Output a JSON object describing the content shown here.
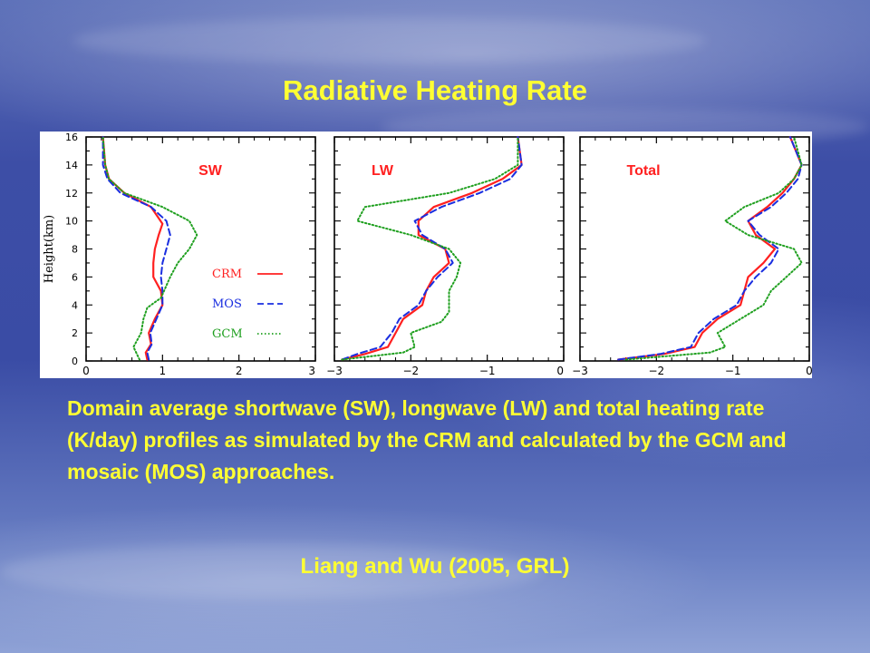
{
  "slide": {
    "title": "Radiative Heating Rate",
    "description": "Domain average shortwave (SW), longwave (LW) and total heating rate (K/day) profiles as simulated by the CRM and calculated by the GCM and mosaic (MOS) approaches.",
    "citation": "Liang and Wu (2005, GRL)",
    "text_color": "#ffff33"
  },
  "chart_data": [
    {
      "type": "line",
      "panel_label": "SW",
      "ylabel": "Height(km)",
      "xlim": [
        0,
        3
      ],
      "ylim": [
        0,
        16
      ],
      "xticks": [
        "0",
        "1",
        "2",
        "3"
      ],
      "yticks": [
        "0",
        "2",
        "4",
        "6",
        "8",
        "10",
        "12",
        "14",
        "16"
      ],
      "legend": [
        "CRM",
        "MOS",
        "GCM"
      ],
      "series": [
        {
          "name": "CRM",
          "color": "#ff2020",
          "dash": "solid",
          "points": [
            [
              0.8,
              0.1
            ],
            [
              0.78,
              0.6
            ],
            [
              0.85,
              1.2
            ],
            [
              0.82,
              2.0
            ],
            [
              0.9,
              3.0
            ],
            [
              1.0,
              4.0
            ],
            [
              0.98,
              5.0
            ],
            [
              0.88,
              6.0
            ],
            [
              0.88,
              7.0
            ],
            [
              0.9,
              8.0
            ],
            [
              0.95,
              9.0
            ],
            [
              1.0,
              9.8
            ],
            [
              0.85,
              11.0
            ],
            [
              0.5,
              12.0
            ],
            [
              0.3,
              13.0
            ],
            [
              0.25,
              14.0
            ],
            [
              0.22,
              16.0
            ]
          ]
        },
        {
          "name": "MOS",
          "color": "#1a2ee0",
          "dash": "dashed",
          "points": [
            [
              0.82,
              0.1
            ],
            [
              0.8,
              0.6
            ],
            [
              0.86,
              1.2
            ],
            [
              0.84,
              2.0
            ],
            [
              0.92,
              3.0
            ],
            [
              1.0,
              4.0
            ],
            [
              1.0,
              5.0
            ],
            [
              0.98,
              6.0
            ],
            [
              1.0,
              7.0
            ],
            [
              1.05,
              8.0
            ],
            [
              1.1,
              9.0
            ],
            [
              1.05,
              10.0
            ],
            [
              0.85,
              11.0
            ],
            [
              0.45,
              12.0
            ],
            [
              0.28,
              13.0
            ],
            [
              0.22,
              14.0
            ],
            [
              0.22,
              16.0
            ]
          ]
        },
        {
          "name": "GCM",
          "color": "#20a020",
          "dash": "dotted",
          "points": [
            [
              0.7,
              0.1
            ],
            [
              0.62,
              1.0
            ],
            [
              0.72,
              2.0
            ],
            [
              0.75,
              3.0
            ],
            [
              0.8,
              3.8
            ],
            [
              0.98,
              4.5
            ],
            [
              1.02,
              5.0
            ],
            [
              1.1,
              6.0
            ],
            [
              1.2,
              7.0
            ],
            [
              1.35,
              8.0
            ],
            [
              1.45,
              9.0
            ],
            [
              1.35,
              10.0
            ],
            [
              1.0,
              11.0
            ],
            [
              0.5,
              12.0
            ],
            [
              0.3,
              13.0
            ],
            [
              0.25,
              14.0
            ],
            [
              0.22,
              16.0
            ]
          ]
        }
      ]
    },
    {
      "type": "line",
      "panel_label": "LW",
      "xlim": [
        -3,
        0
      ],
      "ylim": [
        0,
        16
      ],
      "xticks": [
        "−3",
        "−2",
        "−1",
        "0"
      ],
      "series": [
        {
          "name": "CRM",
          "color": "#ff2020",
          "dash": "solid",
          "points": [
            [
              -2.9,
              0.1
            ],
            [
              -2.6,
              0.5
            ],
            [
              -2.3,
              1.0
            ],
            [
              -2.2,
              2.0
            ],
            [
              -2.1,
              3.0
            ],
            [
              -1.85,
              4.0
            ],
            [
              -1.8,
              5.0
            ],
            [
              -1.7,
              6.0
            ],
            [
              -1.5,
              7.0
            ],
            [
              -1.55,
              8.0
            ],
            [
              -1.9,
              9.0
            ],
            [
              -1.9,
              10.0
            ],
            [
              -1.7,
              11.0
            ],
            [
              -1.2,
              12.0
            ],
            [
              -0.8,
              13.0
            ],
            [
              -0.55,
              14.0
            ],
            [
              -0.6,
              16.0
            ]
          ]
        },
        {
          "name": "MOS",
          "color": "#1a2ee0",
          "dash": "dashed",
          "points": [
            [
              -2.9,
              0.1
            ],
            [
              -2.7,
              0.5
            ],
            [
              -2.4,
              1.0
            ],
            [
              -2.25,
              2.0
            ],
            [
              -2.15,
              3.0
            ],
            [
              -1.9,
              4.0
            ],
            [
              -1.8,
              5.0
            ],
            [
              -1.65,
              6.0
            ],
            [
              -1.45,
              7.0
            ],
            [
              -1.55,
              8.0
            ],
            [
              -1.85,
              9.0
            ],
            [
              -1.95,
              10.0
            ],
            [
              -1.6,
              11.0
            ],
            [
              -1.1,
              12.0
            ],
            [
              -0.7,
              13.0
            ],
            [
              -0.55,
              14.0
            ],
            [
              -0.6,
              16.0
            ]
          ]
        },
        {
          "name": "GCM",
          "color": "#20a020",
          "dash": "dotted",
          "points": [
            [
              -2.9,
              0.1
            ],
            [
              -2.1,
              0.6
            ],
            [
              -1.95,
              1.0
            ],
            [
              -2.0,
              2.0
            ],
            [
              -1.6,
              2.8
            ],
            [
              -1.5,
              3.5
            ],
            [
              -1.5,
              5.0
            ],
            [
              -1.4,
              6.0
            ],
            [
              -1.35,
              7.0
            ],
            [
              -1.5,
              8.0
            ],
            [
              -2.0,
              9.0
            ],
            [
              -2.7,
              10.0
            ],
            [
              -2.6,
              11.0
            ],
            [
              -1.5,
              12.0
            ],
            [
              -0.9,
              13.0
            ],
            [
              -0.6,
              14.0
            ],
            [
              -0.6,
              16.0
            ]
          ]
        }
      ]
    },
    {
      "type": "line",
      "panel_label": "Total",
      "xlim": [
        -3,
        0
      ],
      "ylim": [
        0,
        16
      ],
      "xticks": [
        "−3",
        "−2",
        "−1",
        "0"
      ],
      "series": [
        {
          "name": "CRM",
          "color": "#ff2020",
          "dash": "solid",
          "points": [
            [
              -2.5,
              0.1
            ],
            [
              -1.9,
              0.5
            ],
            [
              -1.5,
              1.0
            ],
            [
              -1.4,
              2.0
            ],
            [
              -1.2,
              3.0
            ],
            [
              -0.9,
              4.0
            ],
            [
              -0.85,
              5.0
            ],
            [
              -0.8,
              6.0
            ],
            [
              -0.6,
              7.0
            ],
            [
              -0.45,
              8.0
            ],
            [
              -0.7,
              9.0
            ],
            [
              -0.8,
              10.0
            ],
            [
              -0.55,
              11.0
            ],
            [
              -0.35,
              12.0
            ],
            [
              -0.2,
              13.0
            ],
            [
              -0.1,
              14.0
            ],
            [
              -0.25,
              16.0
            ]
          ]
        },
        {
          "name": "MOS",
          "color": "#1a2ee0",
          "dash": "dashed",
          "points": [
            [
              -2.5,
              0.1
            ],
            [
              -1.95,
              0.5
            ],
            [
              -1.55,
              1.0
            ],
            [
              -1.45,
              2.0
            ],
            [
              -1.25,
              3.0
            ],
            [
              -0.95,
              4.0
            ],
            [
              -0.85,
              5.0
            ],
            [
              -0.7,
              6.0
            ],
            [
              -0.5,
              7.0
            ],
            [
              -0.4,
              8.0
            ],
            [
              -0.65,
              9.0
            ],
            [
              -0.8,
              10.0
            ],
            [
              -0.5,
              11.0
            ],
            [
              -0.3,
              12.0
            ],
            [
              -0.15,
              13.0
            ],
            [
              -0.1,
              14.0
            ],
            [
              -0.25,
              16.0
            ]
          ]
        },
        {
          "name": "GCM",
          "color": "#20a020",
          "dash": "dotted",
          "points": [
            [
              -2.4,
              0.1
            ],
            [
              -1.3,
              0.6
            ],
            [
              -1.1,
              1.0
            ],
            [
              -1.2,
              2.0
            ],
            [
              -0.9,
              3.0
            ],
            [
              -0.6,
              4.0
            ],
            [
              -0.5,
              5.0
            ],
            [
              -0.3,
              6.0
            ],
            [
              -0.1,
              7.0
            ],
            [
              -0.2,
              8.0
            ],
            [
              -0.8,
              9.0
            ],
            [
              -1.1,
              10.0
            ],
            [
              -0.85,
              11.0
            ],
            [
              -0.4,
              12.0
            ],
            [
              -0.2,
              13.0
            ],
            [
              -0.1,
              14.0
            ],
            [
              -0.2,
              16.0
            ]
          ]
        }
      ]
    }
  ]
}
